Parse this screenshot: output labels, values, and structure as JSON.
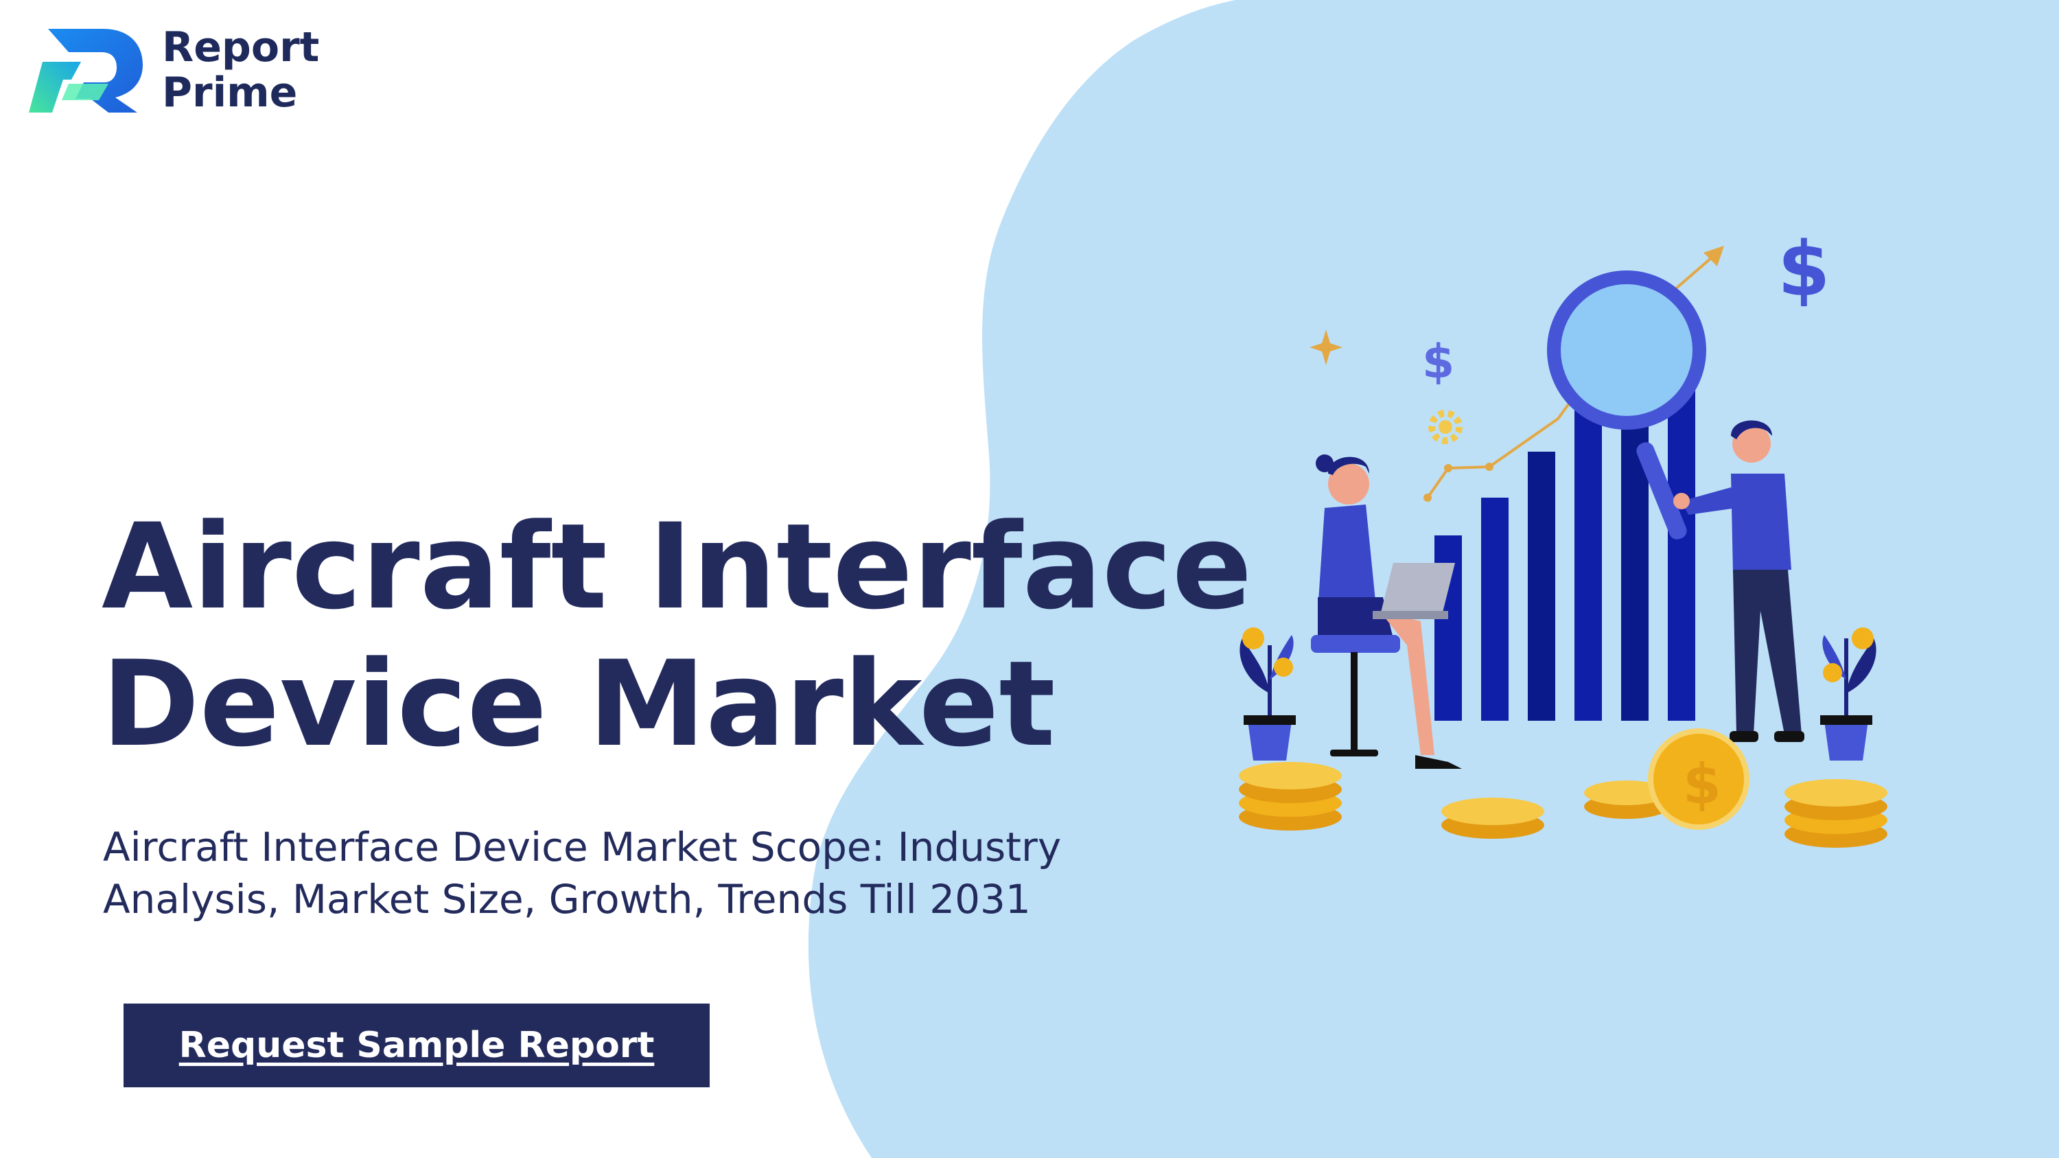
{
  "brand": {
    "name_line1": "Report",
    "name_line2": "Prime",
    "logo_icon": "report-prime-logo-icon"
  },
  "hero": {
    "title_line1": "Aircraft Interface",
    "title_line2": "Device Market",
    "subtitle_line1": "Aircraft Interface Device Market Scope: Industry",
    "subtitle_line2": "Analysis, Market Size, Growth, Trends Till 2031",
    "cta_label": "Request Sample Report"
  },
  "illustration": {
    "description_icons": [
      "dollar-icon",
      "magnifier-icon",
      "gear-icon",
      "sparkle-icon",
      "coin-stack-icon",
      "plant-icon",
      "growth-arrow-icon"
    ]
  },
  "colors": {
    "navy": "#232b5d",
    "blob": "#bde0f7",
    "bar_blue": "#0f1fa8",
    "accent_blue": "#4655d6",
    "coin_gold": "#f2b21b",
    "logo_green": "#3de0a0",
    "logo_blue": "#1e6ff0"
  }
}
